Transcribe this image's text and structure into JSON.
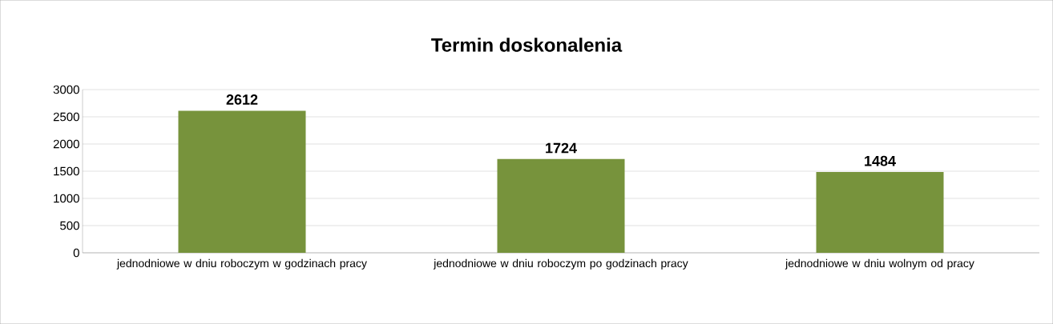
{
  "chart_data": {
    "type": "bar",
    "title": "Termin doskonalenia",
    "categories": [
      "jednodniowe w dniu roboczym w godzinach pracy",
      "jednodniowe w dniu roboczym po godzinach pracy",
      "jednodniowe w dniu wolnym od pracy"
    ],
    "values": [
      2612,
      1724,
      1484
    ],
    "color": "#77933c",
    "data_labels": true,
    "ylim": [
      0,
      3000
    ],
    "yticks": [
      0,
      500,
      1000,
      1500,
      2000,
      2500,
      3000
    ],
    "grid": "y"
  }
}
